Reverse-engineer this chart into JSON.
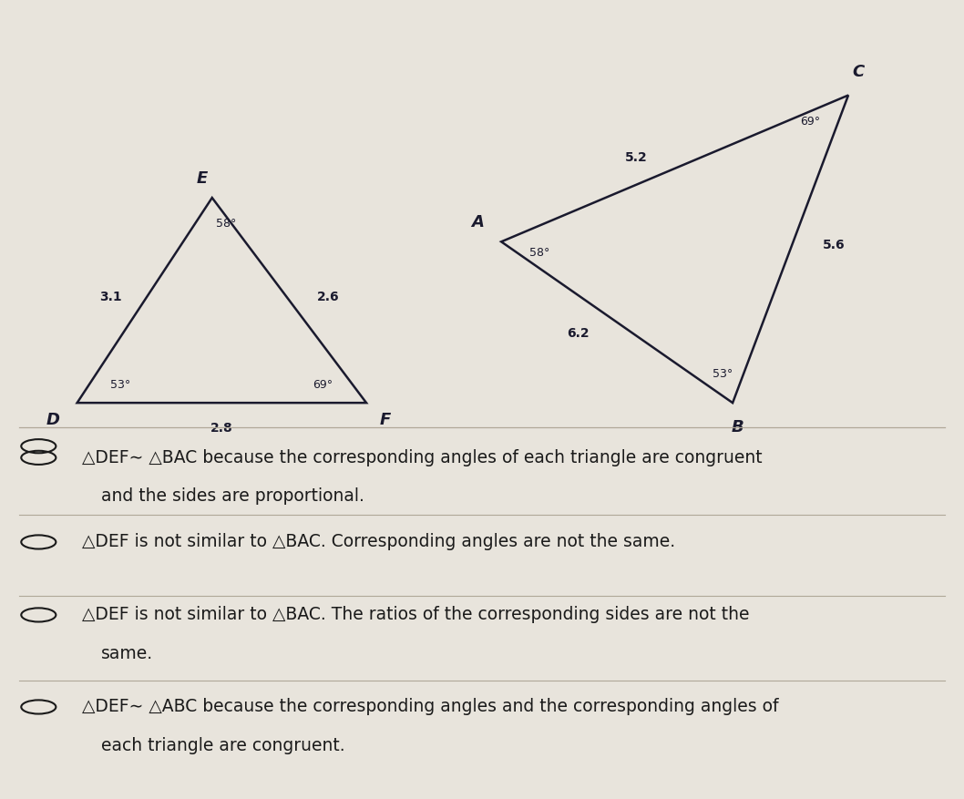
{
  "bg_color": "#e8e4dc",
  "triangle_DEF": {
    "D": [
      0.08,
      0.0
    ],
    "E": [
      0.22,
      0.28
    ],
    "F": [
      0.38,
      0.0
    ],
    "label_D": "D",
    "label_E": "E",
    "label_F": "F",
    "angle_E": "58°",
    "angle_D": "53°",
    "angle_F": "69°",
    "side_DE": "3.1",
    "side_EF": "2.6",
    "side_DF": "2.8",
    "color": "#1a1a2e"
  },
  "triangle_ABC": {
    "A": [
      0.52,
      0.22
    ],
    "B": [
      0.76,
      0.0
    ],
    "C": [
      0.88,
      0.42
    ],
    "label_A": "A",
    "label_B": "B",
    "label_C": "C",
    "angle_A": "58°",
    "angle_B": "53°",
    "angle_C": "69°",
    "side_AC": "5.2",
    "side_BC": "5.6",
    "side_AB": "6.2",
    "color": "#1a1a2e"
  },
  "choices": [
    {
      "text1": "△DEF∼ △BAC because the corresponding angles of each triangle are congruent",
      "text2": "and the sides are proportional.",
      "underline_parts": [
        [
          0,
          8
        ],
        [
          11,
          15
        ]
      ],
      "bold_parts": []
    },
    {
      "text1": "△DEF is not similar to △BAC. Corresponding angles are not the same.",
      "text2": null,
      "underline_parts": [],
      "bold_parts": []
    },
    {
      "text1": "△DEF is not similar to △BAC. The ratios of the corresponding sides are not the",
      "text2": "same.",
      "underline_parts": [],
      "bold_parts": []
    },
    {
      "text1": "△DEF∼ △ABC because the corresponding angles and the corresponding angles of",
      "text2": "each triangle are congruent.",
      "underline_parts": [],
      "bold_parts": []
    }
  ],
  "divider_color": "#b0a898",
  "text_color": "#1a1a1a",
  "circle_color": "#1a1a1a"
}
